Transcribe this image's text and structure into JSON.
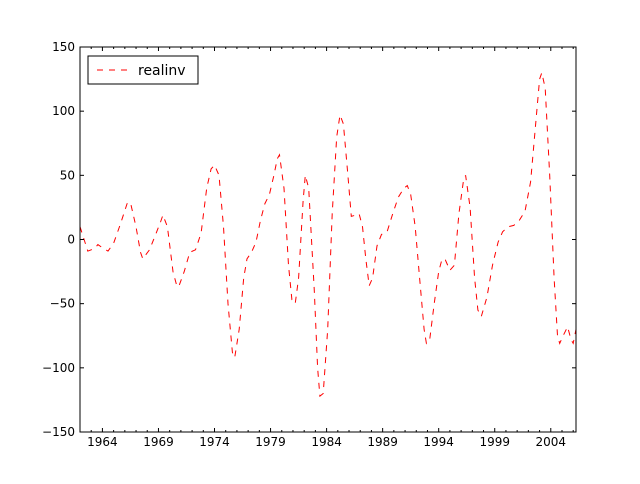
{
  "chart_data": {
    "type": "line",
    "title": "",
    "xlabel": "",
    "ylabel": "",
    "xlim": [
      1962.0,
      2006.25
    ],
    "ylim": [
      -150,
      150
    ],
    "grid": false,
    "legend_position": "upper left",
    "x_tick_labels": [
      "1964",
      "1969",
      "1974",
      "1979",
      "1984",
      "1989",
      "1994",
      "1999",
      "2004"
    ],
    "x_ticks": [
      1964,
      1969,
      1974,
      1979,
      1984,
      1989,
      1994,
      1999,
      2004
    ],
    "y_tick_labels": [
      "−150",
      "−100",
      "−50",
      "0",
      "50",
      "100",
      "150"
    ],
    "y_ticks": [
      -150,
      -100,
      -50,
      0,
      50,
      100,
      150
    ],
    "series": [
      {
        "name": "realinv",
        "color": "#ff0000",
        "linestyle": "dashed",
        "points": [
          [
            1962.0,
            10
          ],
          [
            1962.7,
            -9
          ],
          [
            1963.3,
            -7
          ],
          [
            1963.6,
            -4
          ],
          [
            1964.1,
            -7
          ],
          [
            1964.5,
            -9
          ],
          [
            1965.0,
            -3
          ],
          [
            1965.6,
            12
          ],
          [
            1966.2,
            28
          ],
          [
            1966.5,
            29
          ],
          [
            1967.0,
            10
          ],
          [
            1967.4,
            -10
          ],
          [
            1967.6,
            -15
          ],
          [
            1968.2,
            -8
          ],
          [
            1968.8,
            5
          ],
          [
            1969.2,
            14
          ],
          [
            1969.4,
            19
          ],
          [
            1969.8,
            10
          ],
          [
            1970.3,
            -25
          ],
          [
            1970.6,
            -35
          ],
          [
            1970.8,
            -37
          ],
          [
            1971.3,
            -25
          ],
          [
            1971.8,
            -10
          ],
          [
            1972.3,
            -8
          ],
          [
            1972.8,
            5
          ],
          [
            1973.3,
            40
          ],
          [
            1973.7,
            55
          ],
          [
            1974.0,
            58
          ],
          [
            1974.4,
            50
          ],
          [
            1974.8,
            10
          ],
          [
            1975.2,
            -50
          ],
          [
            1975.6,
            -88
          ],
          [
            1975.8,
            -92
          ],
          [
            1976.2,
            -70
          ],
          [
            1976.6,
            -30
          ],
          [
            1976.9,
            -15
          ],
          [
            1977.3,
            -10
          ],
          [
            1977.7,
            -2
          ],
          [
            1978.1,
            15
          ],
          [
            1978.5,
            28
          ],
          [
            1978.9,
            35
          ],
          [
            1979.3,
            50
          ],
          [
            1979.6,
            63
          ],
          [
            1979.8,
            66
          ],
          [
            1980.2,
            40
          ],
          [
            1980.6,
            -20
          ],
          [
            1980.9,
            -47
          ],
          [
            1981.2,
            -50
          ],
          [
            1981.5,
            -30
          ],
          [
            1981.9,
            30
          ],
          [
            1982.1,
            50
          ],
          [
            1982.4,
            40
          ],
          [
            1982.9,
            -40
          ],
          [
            1983.2,
            -100
          ],
          [
            1983.4,
            -122
          ],
          [
            1983.7,
            -120
          ],
          [
            1984.1,
            -70
          ],
          [
            1984.5,
            20
          ],
          [
            1984.9,
            80
          ],
          [
            1985.2,
            97
          ],
          [
            1985.5,
            90
          ],
          [
            1985.9,
            50
          ],
          [
            1986.2,
            18
          ],
          [
            1986.6,
            19
          ],
          [
            1986.9,
            20
          ],
          [
            1987.2,
            10
          ],
          [
            1987.5,
            -15
          ],
          [
            1987.8,
            -36
          ],
          [
            1988.1,
            -30
          ],
          [
            1988.5,
            -5
          ],
          [
            1988.9,
            4
          ],
          [
            1989.4,
            6
          ],
          [
            1989.9,
            20
          ],
          [
            1990.4,
            33
          ],
          [
            1990.9,
            40
          ],
          [
            1991.2,
            42
          ],
          [
            1991.5,
            35
          ],
          [
            1991.9,
            10
          ],
          [
            1992.3,
            -30
          ],
          [
            1992.7,
            -70
          ],
          [
            1992.9,
            -81
          ],
          [
            1993.2,
            -78
          ],
          [
            1993.6,
            -50
          ],
          [
            1994.0,
            -25
          ],
          [
            1994.3,
            -15
          ],
          [
            1994.6,
            -16
          ],
          [
            1995.0,
            -24
          ],
          [
            1995.4,
            -20
          ],
          [
            1995.8,
            20
          ],
          [
            1996.2,
            45
          ],
          [
            1996.4,
            50
          ],
          [
            1996.8,
            25
          ],
          [
            1997.2,
            -30
          ],
          [
            1997.5,
            -55
          ],
          [
            1997.8,
            -60
          ],
          [
            1998.3,
            -45
          ],
          [
            1998.8,
            -20
          ],
          [
            1999.3,
            -2
          ],
          [
            1999.7,
            6
          ],
          [
            2000.2,
            10
          ],
          [
            2000.7,
            11
          ],
          [
            2001.2,
            15
          ],
          [
            2001.7,
            22
          ],
          [
            2002.2,
            45
          ],
          [
            2002.6,
            85
          ],
          [
            2003.0,
            125
          ],
          [
            2003.2,
            130
          ],
          [
            2003.5,
            118
          ],
          [
            2003.9,
            50
          ],
          [
            2004.3,
            -30
          ],
          [
            2004.6,
            -75
          ],
          [
            2004.8,
            -81
          ],
          [
            2005.1,
            -75
          ],
          [
            2005.5,
            -68
          ],
          [
            2005.8,
            -78
          ],
          [
            2006.0,
            -81
          ],
          [
            2006.25,
            -70
          ]
        ]
      }
    ]
  },
  "legend": {
    "items": [
      {
        "label": "realinv",
        "color": "#ff0000",
        "linestyle": "dashed"
      }
    ]
  }
}
